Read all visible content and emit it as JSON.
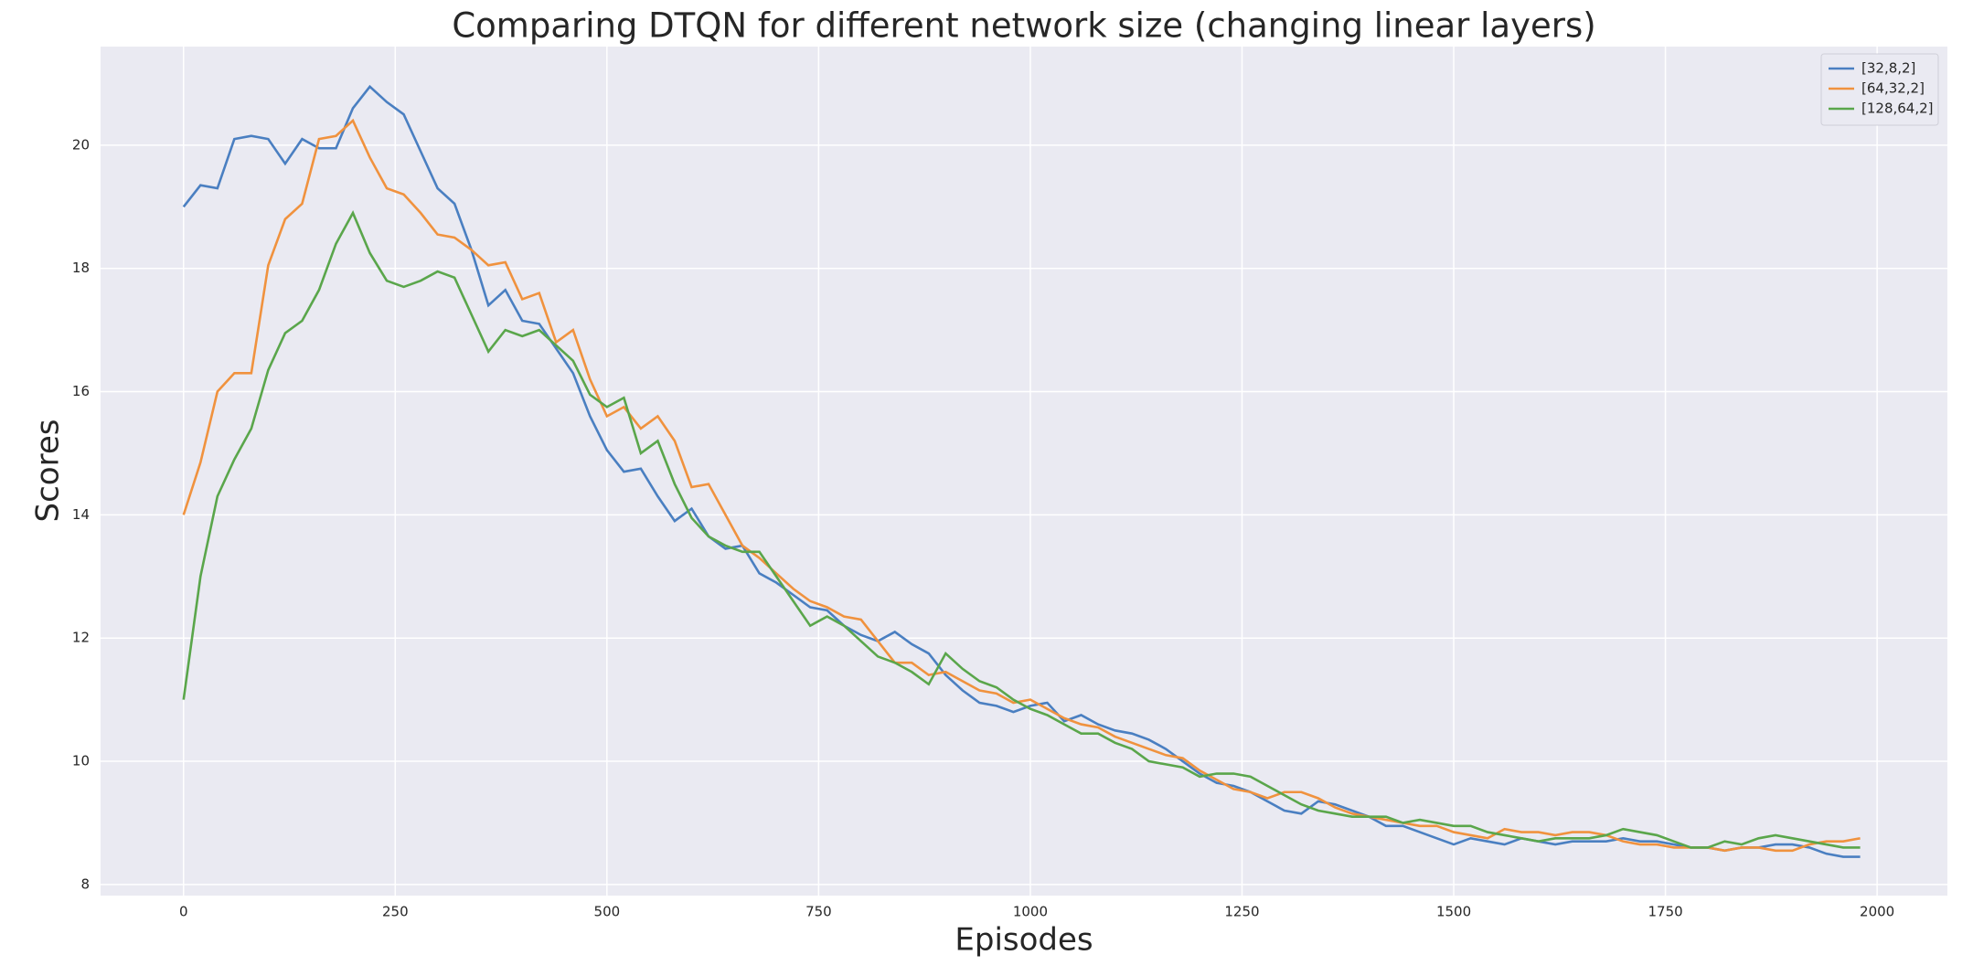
{
  "chart_data": {
    "type": "line",
    "title": "Comparing DTQN for different network size (changing linear layers)",
    "xlabel": "Episodes",
    "ylabel": "Scores",
    "x": [
      0,
      20,
      40,
      60,
      80,
      100,
      120,
      140,
      160,
      180,
      200,
      220,
      240,
      260,
      280,
      300,
      320,
      340,
      360,
      380,
      400,
      420,
      440,
      460,
      480,
      500,
      520,
      540,
      560,
      580,
      600,
      620,
      640,
      660,
      680,
      700,
      720,
      740,
      760,
      780,
      800,
      820,
      840,
      860,
      880,
      900,
      920,
      940,
      960,
      980,
      1000,
      1020,
      1040,
      1060,
      1080,
      1100,
      1120,
      1140,
      1160,
      1180,
      1200,
      1220,
      1240,
      1260,
      1280,
      1300,
      1320,
      1340,
      1360,
      1380,
      1400,
      1420,
      1440,
      1460,
      1480,
      1500,
      1520,
      1540,
      1560,
      1580,
      1600,
      1620,
      1640,
      1660,
      1680,
      1700,
      1720,
      1740,
      1760,
      1780,
      1800,
      1820,
      1840,
      1860,
      1880,
      1900,
      1920,
      1940,
      1960,
      1980
    ],
    "series": [
      {
        "name": "[32,8,2]",
        "color": "#4a7fc1",
        "values": [
          19.0,
          19.35,
          19.3,
          20.1,
          20.15,
          20.1,
          19.7,
          20.1,
          19.95,
          19.95,
          20.6,
          20.95,
          20.7,
          20.5,
          19.9,
          19.3,
          19.05,
          18.3,
          17.4,
          17.65,
          17.15,
          17.1,
          16.7,
          16.3,
          15.6,
          15.05,
          14.7,
          14.75,
          14.3,
          13.9,
          14.1,
          13.65,
          13.45,
          13.5,
          13.05,
          12.9,
          12.7,
          12.5,
          12.45,
          12.2,
          12.05,
          11.95,
          12.1,
          11.9,
          11.75,
          11.4,
          11.15,
          10.95,
          10.9,
          10.8,
          10.9,
          10.95,
          10.65,
          10.75,
          10.6,
          10.5,
          10.45,
          10.35,
          10.2,
          10.0,
          9.8,
          9.65,
          9.6,
          9.5,
          9.35,
          9.2,
          9.15,
          9.35,
          9.3,
          9.2,
          9.1,
          8.95,
          8.95,
          8.85,
          8.75,
          8.65,
          8.75,
          8.7,
          8.65,
          8.75,
          8.7,
          8.65,
          8.7,
          8.7,
          8.7,
          8.75,
          8.7,
          8.7,
          8.65,
          8.6,
          8.6,
          8.55,
          8.6,
          8.6,
          8.65,
          8.65,
          8.6,
          8.5,
          8.45,
          8.45
        ]
      },
      {
        "name": "[64,32,2]",
        "color": "#f0923e",
        "values": [
          14.0,
          14.85,
          16.0,
          16.3,
          16.3,
          18.05,
          18.8,
          19.05,
          20.1,
          20.15,
          20.4,
          19.8,
          19.3,
          19.2,
          18.9,
          18.55,
          18.5,
          18.3,
          18.05,
          18.1,
          17.5,
          17.6,
          16.8,
          17.0,
          16.2,
          15.6,
          15.75,
          15.4,
          15.6,
          15.2,
          14.45,
          14.5,
          14.0,
          13.5,
          13.3,
          13.05,
          12.8,
          12.6,
          12.5,
          12.35,
          12.3,
          11.95,
          11.6,
          11.6,
          11.4,
          11.45,
          11.3,
          11.15,
          11.1,
          10.95,
          11.0,
          10.85,
          10.7,
          10.6,
          10.55,
          10.4,
          10.3,
          10.2,
          10.1,
          10.05,
          9.85,
          9.7,
          9.55,
          9.5,
          9.4,
          9.5,
          9.5,
          9.4,
          9.25,
          9.15,
          9.1,
          9.05,
          9.0,
          8.95,
          8.95,
          8.85,
          8.8,
          8.75,
          8.9,
          8.85,
          8.85,
          8.8,
          8.85,
          8.85,
          8.8,
          8.7,
          8.65,
          8.65,
          8.6,
          8.6,
          8.6,
          8.55,
          8.6,
          8.6,
          8.55,
          8.55,
          8.65,
          8.7,
          8.7,
          8.75
        ]
      },
      {
        "name": "[128,64,2]",
        "color": "#5aa64b",
        "values": [
          11.0,
          13.0,
          14.3,
          14.9,
          15.4,
          16.35,
          16.95,
          17.15,
          17.65,
          18.4,
          18.9,
          18.25,
          17.8,
          17.7,
          17.8,
          17.95,
          17.85,
          17.25,
          16.65,
          17.0,
          16.9,
          17.0,
          16.75,
          16.5,
          15.95,
          15.75,
          15.9,
          15.0,
          15.2,
          14.5,
          13.95,
          13.65,
          13.5,
          13.4,
          13.4,
          13.0,
          12.6,
          12.2,
          12.35,
          12.2,
          11.95,
          11.7,
          11.6,
          11.45,
          11.25,
          11.75,
          11.5,
          11.3,
          11.2,
          11.0,
          10.85,
          10.75,
          10.6,
          10.45,
          10.45,
          10.3,
          10.2,
          10.0,
          9.95,
          9.9,
          9.75,
          9.8,
          9.8,
          9.75,
          9.6,
          9.45,
          9.3,
          9.2,
          9.15,
          9.1,
          9.1,
          9.1,
          9.0,
          9.05,
          9.0,
          8.95,
          8.95,
          8.85,
          8.8,
          8.75,
          8.7,
          8.75,
          8.75,
          8.75,
          8.8,
          8.9,
          8.85,
          8.8,
          8.7,
          8.6,
          8.6,
          8.7,
          8.65,
          8.75,
          8.8,
          8.75,
          8.7,
          8.65,
          8.6,
          8.6
        ]
      }
    ],
    "xlim": [
      -98,
      2083
    ],
    "ylim": [
      7.82,
      21.6
    ],
    "xticks": [
      0,
      250,
      500,
      750,
      1000,
      1250,
      1500,
      1750,
      2000
    ],
    "yticks": [
      8,
      10,
      12,
      14,
      16,
      18,
      20
    ],
    "grid": true,
    "legend": "upper right"
  }
}
